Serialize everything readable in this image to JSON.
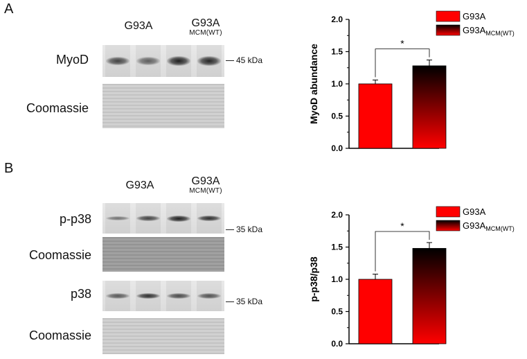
{
  "panels": {
    "a": {
      "letter": "A",
      "group1": "G93A",
      "group2_main": "G93A",
      "group2_sub": "MCM(WT)",
      "label_target": "MyoD",
      "label_loading": "Coomassie",
      "marker": "45 kDa",
      "band_intensity": [
        0.75,
        0.55,
        1.0,
        0.95
      ]
    },
    "b": {
      "letter": "B",
      "group1": "G93A",
      "group2_main": "G93A",
      "group2_sub": "MCM(WT)",
      "label_target1": "p-p38",
      "label_loading1": "Coomassie",
      "label_target2": "p38",
      "label_loading2": "Coomassie",
      "marker1": "35 kDa",
      "marker2": "35 kDa",
      "band_intensity1": [
        0.4,
        0.75,
        1.0,
        0.9
      ],
      "band_intensity2": [
        0.6,
        0.9,
        0.7,
        0.65
      ]
    }
  },
  "chart_data": [
    {
      "type": "bar",
      "categories": [
        "G93A",
        "G93A MCM(WT)"
      ],
      "values": [
        1.0,
        1.28
      ],
      "errors": [
        0.06,
        0.09
      ],
      "ylabel": "MyoD abundance",
      "xlabel": "",
      "ylim": [
        0,
        2.0
      ],
      "yticks": [
        "0.0",
        "0.5",
        "1.0",
        "1.5",
        "2.0"
      ],
      "legend": [
        {
          "main": "G93A",
          "sub": ""
        },
        {
          "main": "G93A",
          "sub": "MCM(WT)"
        }
      ],
      "legend_position": "top-right",
      "significance": "*",
      "colors": [
        "#ff0000",
        "#ff0000",
        "#000000"
      ]
    },
    {
      "type": "bar",
      "categories": [
        "G93A",
        "G93A MCM(WT)"
      ],
      "values": [
        1.0,
        1.48
      ],
      "errors": [
        0.08,
        0.09
      ],
      "ylabel": "p-p38/p38",
      "xlabel": "",
      "ylim": [
        0,
        2.0
      ],
      "yticks": [
        "0.0",
        "0.5",
        "1.0",
        "1.5",
        "2.0"
      ],
      "legend": [
        {
          "main": "G93A",
          "sub": ""
        },
        {
          "main": "G93A",
          "sub": "MCM(WT)"
        }
      ],
      "legend_position": "top-right",
      "significance": "*",
      "colors": [
        "#ff0000",
        "#ff0000",
        "#000000"
      ]
    }
  ]
}
